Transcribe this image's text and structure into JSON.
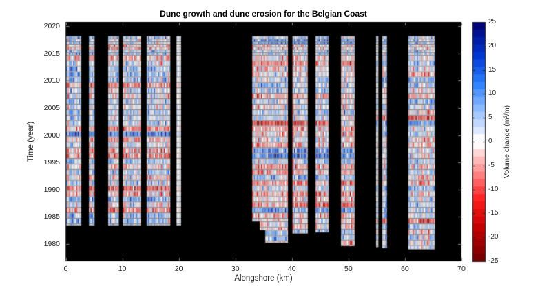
{
  "title": "Dune growth and dune erosion for the Belgian Coast",
  "x_axis": {
    "label": "Alongshore (km)",
    "min": 0,
    "max": 70,
    "ticks": [
      0,
      10,
      20,
      30,
      40,
      50,
      60,
      70
    ]
  },
  "y_axis": {
    "label": "Time (year)",
    "min": 1976.8,
    "max": 2020.8,
    "ticks": [
      1980,
      1985,
      1990,
      1995,
      2000,
      2005,
      2010,
      2015,
      2020
    ]
  },
  "colorbar": {
    "label": "Volume change (m³/m)",
    "min": -25,
    "max": 25,
    "ticks": [
      25,
      20,
      15,
      10,
      5,
      0,
      -5,
      -10,
      -15,
      -20,
      -25
    ],
    "steps": 32
  },
  "colors": {
    "plot_background": "#000000",
    "grid_line": "#b8b8b8",
    "axis_text": "#262626",
    "tick_mark": "#858585",
    "frame": "#000000"
  },
  "chart_data": {
    "type": "heatmap",
    "title": "Dune growth and dune erosion for the Belgian Coast",
    "xlabel": "Alongshore (km)",
    "ylabel": "Time (year)",
    "value_label": "Volume change (m³/m)",
    "xlim": [
      0,
      70
    ],
    "ylim": [
      1976.8,
      2020.8
    ],
    "value_range": [
      -25,
      25
    ],
    "cell_km": 0.25,
    "survey_rows": "annual 1979-2015, semi-annual 2015-2018",
    "pattern_seed": 7,
    "colormap_stops": [
      [
        -25,
        "#700000"
      ],
      [
        -18,
        "#c40000"
      ],
      [
        -12,
        "#ff1e1e"
      ],
      [
        -7,
        "#ff8080"
      ],
      [
        -3,
        "#ffc9c9"
      ],
      [
        -0.5,
        "#ffffff"
      ],
      [
        0.5,
        "#ffffff"
      ],
      [
        3,
        "#cfe0ff"
      ],
      [
        7,
        "#8cbaff"
      ],
      [
        12,
        "#2e82ff"
      ],
      [
        18,
        "#0037d2"
      ],
      [
        25,
        "#00006e"
      ]
    ],
    "strips": [
      {
        "km": [
          0.05,
          2.75
        ],
        "years": [
          1983.4,
          2018.2
        ]
      },
      {
        "km": [
          4.1,
          5.1
        ],
        "years": [
          1983.4,
          2018.2
        ]
      },
      {
        "km": [
          7.5,
          9.4
        ],
        "years": [
          1983.4,
          2018.2
        ]
      },
      {
        "km": [
          10.1,
          13.3
        ],
        "years": [
          1983.4,
          2018.2
        ]
      },
      {
        "km": [
          14.3,
          18.5
        ],
        "years": [
          1983.4,
          2018.2
        ]
      },
      {
        "km": [
          19.6,
          20.4
        ],
        "years": [
          1983.4,
          2018.2
        ],
        "gain": 0.2
      },
      {
        "km": [
          33.0,
          39.3
        ],
        "years": [
          1984.1,
          2018.2
        ],
        "extensions": [
          {
            "km": [
              34.3,
              39.3
            ],
            "years": [
              1982.5,
              1984.1
            ]
          },
          {
            "km": [
              35.3,
              39.3
            ],
            "years": [
              1980.2,
              1982.5
            ]
          }
        ]
      },
      {
        "km": [
          40.1,
          42.8
        ],
        "years": [
          1981.9,
          2018.2
        ]
      },
      {
        "km": [
          44.2,
          46.5
        ],
        "years": [
          1982.1,
          2018.2
        ]
      },
      {
        "km": [
          48.7,
          51.1
        ],
        "years": [
          1979.6,
          2018.2
        ]
      },
      {
        "km": [
          54.9,
          55.3
        ],
        "years": [
          1979.4,
          2018.2
        ],
        "gain": 0.5
      },
      {
        "km": [
          56.0,
          56.8
        ],
        "years": [
          1979.2,
          2018.2
        ]
      },
      {
        "km": [
          60.6,
          65.3
        ],
        "years": [
          1979.0,
          2018.2
        ]
      }
    ],
    "feature_rows": [
      {
        "km": [
          0,
          21
        ],
        "year": 2000,
        "bias": 15
      },
      {
        "km": [
          0,
          21
        ],
        "year": 1990,
        "bias": -9
      },
      {
        "km": [
          0,
          21
        ],
        "year": 1986,
        "bias": -6
      },
      {
        "km": [
          0,
          21
        ],
        "year": 2011,
        "bias": 8
      },
      {
        "km": [
          33,
          52
        ],
        "year": 1996,
        "bias": 16
      },
      {
        "km": [
          33,
          52
        ],
        "year": 1997,
        "bias": 10
      },
      {
        "km": [
          33,
          47
        ],
        "year": 2002,
        "bias": -13
      },
      {
        "km": [
          33,
          52
        ],
        "year": 1989,
        "bias": -8
      },
      {
        "km": [
          33,
          52
        ],
        "year": 1991,
        "bias": -7
      },
      {
        "km": [
          33,
          52
        ],
        "year": 1994,
        "bias": -6
      },
      {
        "km": [
          33,
          40
        ],
        "year": 2009,
        "bias": 9
      },
      {
        "km": [
          40,
          52
        ],
        "year": 1987,
        "bias": -8
      },
      {
        "km": [
          60,
          66
        ],
        "year": 2006,
        "bias": 7
      },
      {
        "km": [
          54,
          66
        ],
        "year": 1998,
        "bias": -5
      }
    ]
  }
}
